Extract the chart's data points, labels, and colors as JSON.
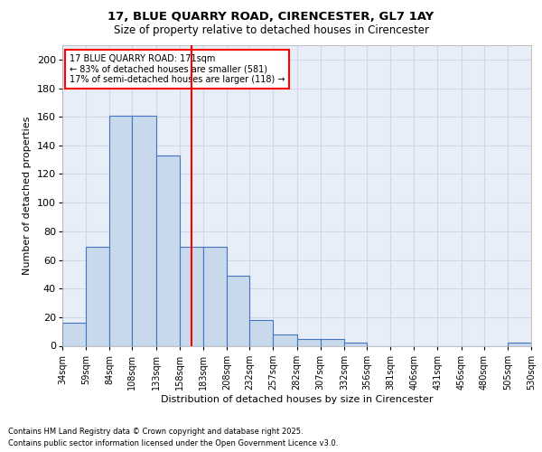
{
  "title_line1": "17, BLUE QUARRY ROAD, CIRENCESTER, GL7 1AY",
  "title_line2": "Size of property relative to detached houses in Cirencester",
  "xlabel": "Distribution of detached houses by size in Cirencester",
  "ylabel": "Number of detached properties",
  "bin_labels": [
    "34sqm",
    "59sqm",
    "84sqm",
    "108sqm",
    "133sqm",
    "158sqm",
    "183sqm",
    "208sqm",
    "232sqm",
    "257sqm",
    "282sqm",
    "307sqm",
    "332sqm",
    "356sqm",
    "381sqm",
    "406sqm",
    "431sqm",
    "456sqm",
    "480sqm",
    "505sqm",
    "530sqm"
  ],
  "bin_edges": [
    34,
    59,
    84,
    108,
    133,
    158,
    183,
    208,
    232,
    257,
    282,
    307,
    332,
    356,
    381,
    406,
    431,
    456,
    480,
    505,
    530
  ],
  "bar_heights": [
    16,
    69,
    161,
    161,
    133,
    69,
    69,
    49,
    18,
    8,
    5,
    5,
    2,
    0,
    0,
    0,
    0,
    0,
    0,
    2,
    0
  ],
  "bar_color": "#c9d9ec",
  "bar_edge_color": "#4472c4",
  "vline_x": 171,
  "vline_color": "red",
  "annotation_line1": "17 BLUE QUARRY ROAD: 171sqm",
  "annotation_line2": "← 83% of detached houses are smaller (581)",
  "annotation_line3": "17% of semi-detached houses are larger (118) →",
  "annotation_box_color": "white",
  "annotation_box_edge_color": "red",
  "ylim": [
    0,
    210
  ],
  "yticks": [
    0,
    20,
    40,
    60,
    80,
    100,
    120,
    140,
    160,
    180,
    200
  ],
  "background_color": "#e8eef8",
  "grid_color": "#d0d8e8",
  "footer_line1": "Contains HM Land Registry data © Crown copyright and database right 2025.",
  "footer_line2": "Contains public sector information licensed under the Open Government Licence v3.0."
}
